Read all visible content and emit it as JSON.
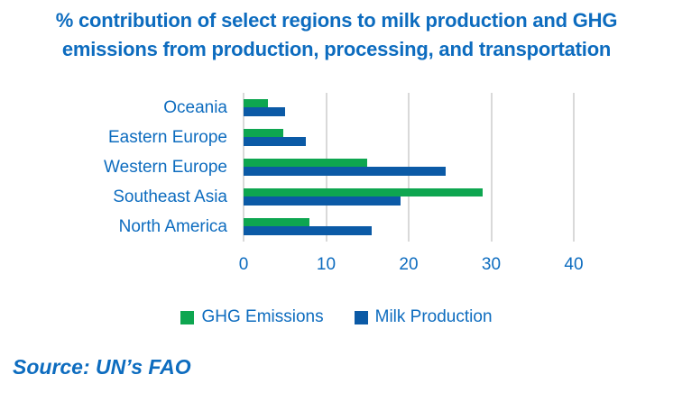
{
  "title": {
    "text": "% contribution of select regions to milk production and GHG emissions from production, processing, and transportation",
    "line1": "% contribution of select regions to milk production and GHG",
    "line2": "emissions from production, processing, and transportation"
  },
  "source": "Source: UN’s FAO",
  "colors": {
    "text_blue": "#0d6cbf",
    "ghg_green": "#0ea650",
    "milk_blue": "#0b5aa6",
    "gridline": "#d9d9d9",
    "background": "#ffffff"
  },
  "chart_data": {
    "type": "bar",
    "orientation": "horizontal",
    "title": "% contribution of select regions to milk production and GHG emissions from production, processing, and transportation",
    "categories": [
      "Oceania",
      "Eastern Europe",
      "Western Europe",
      "Southeast Asia",
      "North America"
    ],
    "series": [
      {
        "name": "GHG Emissions",
        "color": "#0ea650",
        "values": [
          3,
          4.8,
          15,
          29,
          8
        ]
      },
      {
        "name": "Milk Production",
        "color": "#0b5aa6",
        "values": [
          5,
          7.5,
          24.5,
          19,
          15.5
        ]
      }
    ],
    "xlabel": "",
    "ylabel": "",
    "xticks": [
      0,
      10,
      20,
      30,
      40
    ],
    "xlim": [
      0,
      40
    ],
    "grid": true,
    "legend_position": "bottom"
  }
}
